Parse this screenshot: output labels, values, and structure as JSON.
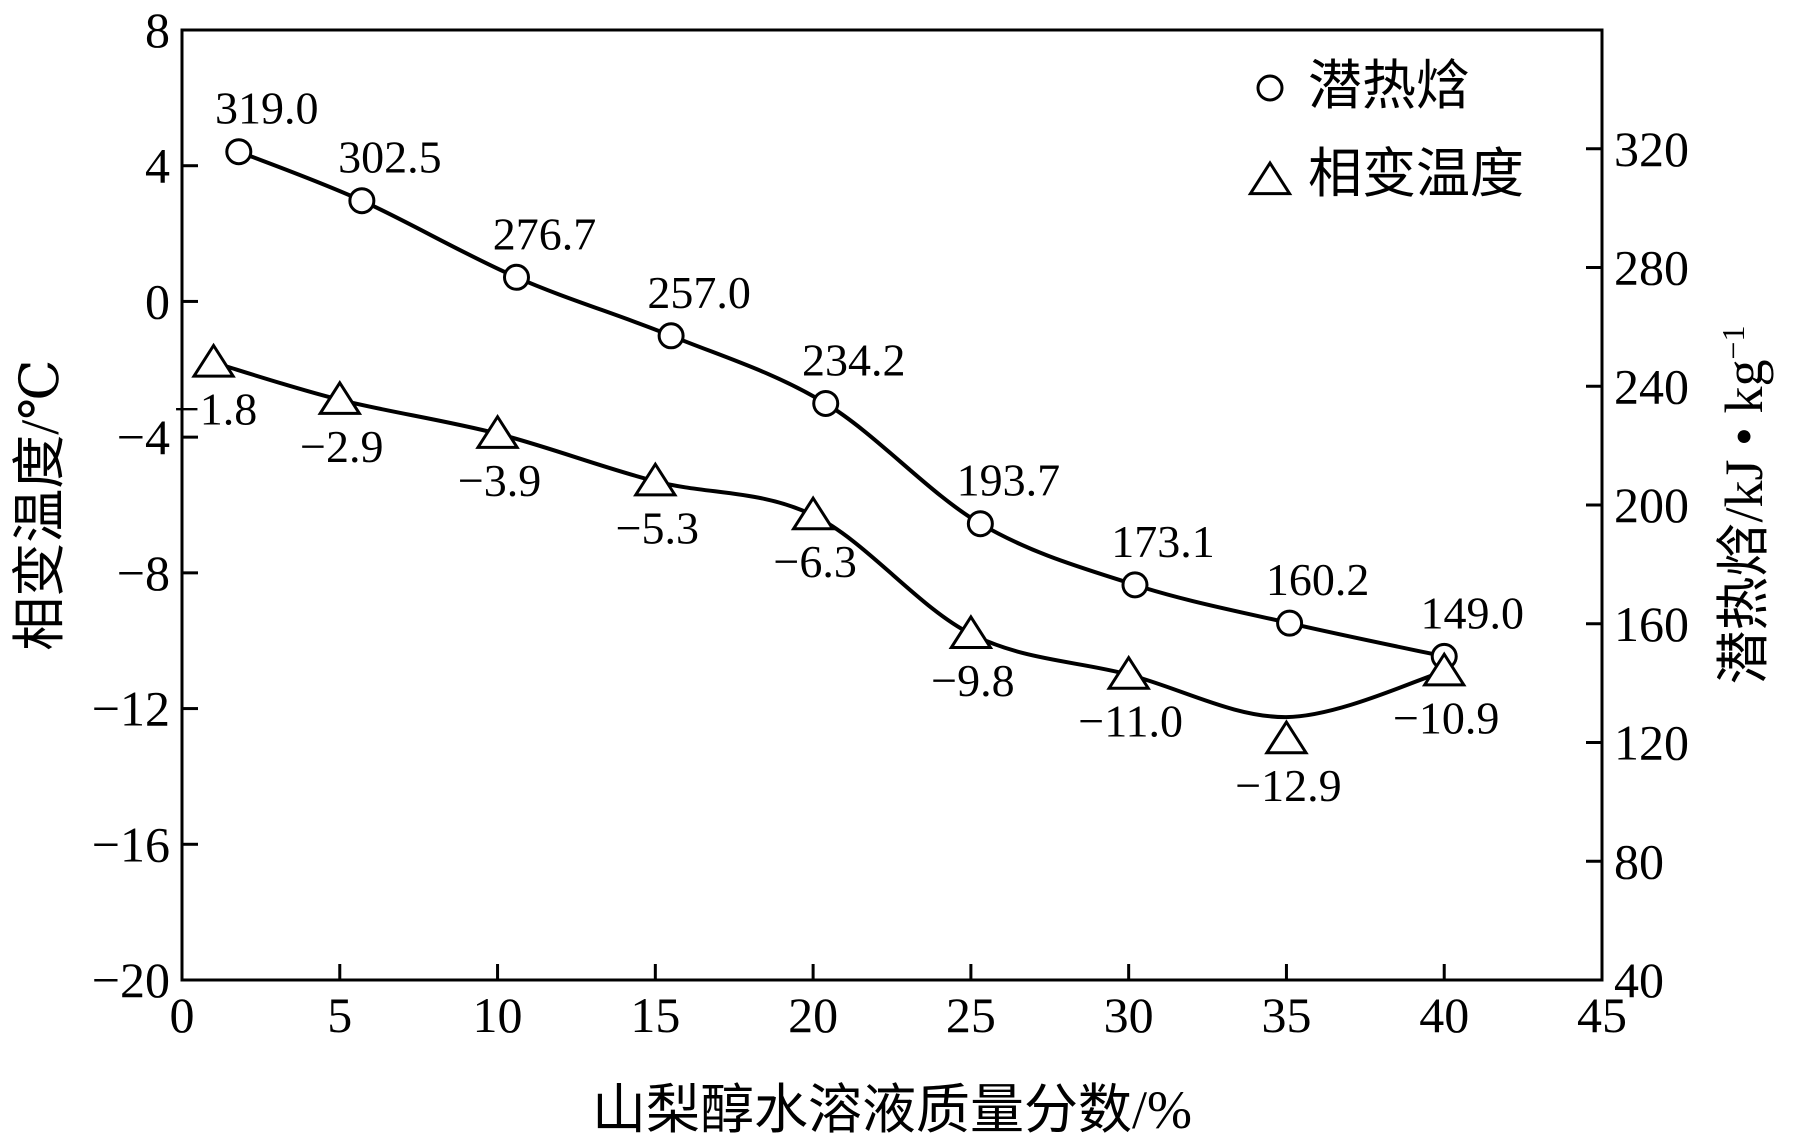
{
  "chart_data": {
    "type": "line",
    "xlabel": "山梨醇水溶液质量分数/%",
    "ylabel_left": "相变温度/℃",
    "ylabel_right": "潜热焓/kJ • kg",
    "ylabel_right_superscript": "−1",
    "xlim": [
      0,
      45
    ],
    "ylim_left": [
      -20,
      8
    ],
    "ylim_right": [
      40,
      360
    ],
    "x_ticks": [
      "0",
      "5",
      "10",
      "15",
      "20",
      "25",
      "30",
      "35",
      "40",
      "45"
    ],
    "y_left_ticks": [
      "−20",
      "−16",
      "−12",
      "−8",
      "−4",
      "0",
      "4",
      "8"
    ],
    "y_right_ticks": [
      "40",
      "80",
      "120",
      "160",
      "200",
      "240",
      "280",
      "320"
    ],
    "grid": false,
    "legend_position": "top-right",
    "series": [
      {
        "name": "潜热焓",
        "axis": "right",
        "marker": "circle",
        "x": [
          1.8,
          5.7,
          10.6,
          15.5,
          20.4,
          25.3,
          30.2,
          35.1,
          40.0
        ],
        "y": [
          319.0,
          302.5,
          276.7,
          257.0,
          234.2,
          193.7,
          173.1,
          160.2,
          149.0
        ],
        "labels": [
          "319.0",
          "302.5",
          "276.7",
          "257.0",
          "234.2",
          "193.7",
          "173.1",
          "160.2",
          "149.0"
        ]
      },
      {
        "name": "相变温度",
        "axis": "left",
        "marker": "triangle",
        "x": [
          1,
          5,
          10,
          15,
          20,
          25,
          30,
          35,
          40
        ],
        "y": [
          -1.8,
          -2.9,
          -3.9,
          -5.3,
          -6.3,
          -9.8,
          -11.0,
          -12.9,
          -10.9
        ],
        "labels": [
          "−1.8",
          "−2.9",
          "−3.9",
          "−5.3",
          "−6.3",
          "−9.8",
          "−11.0",
          "−12.9",
          "−10.9"
        ]
      }
    ]
  }
}
